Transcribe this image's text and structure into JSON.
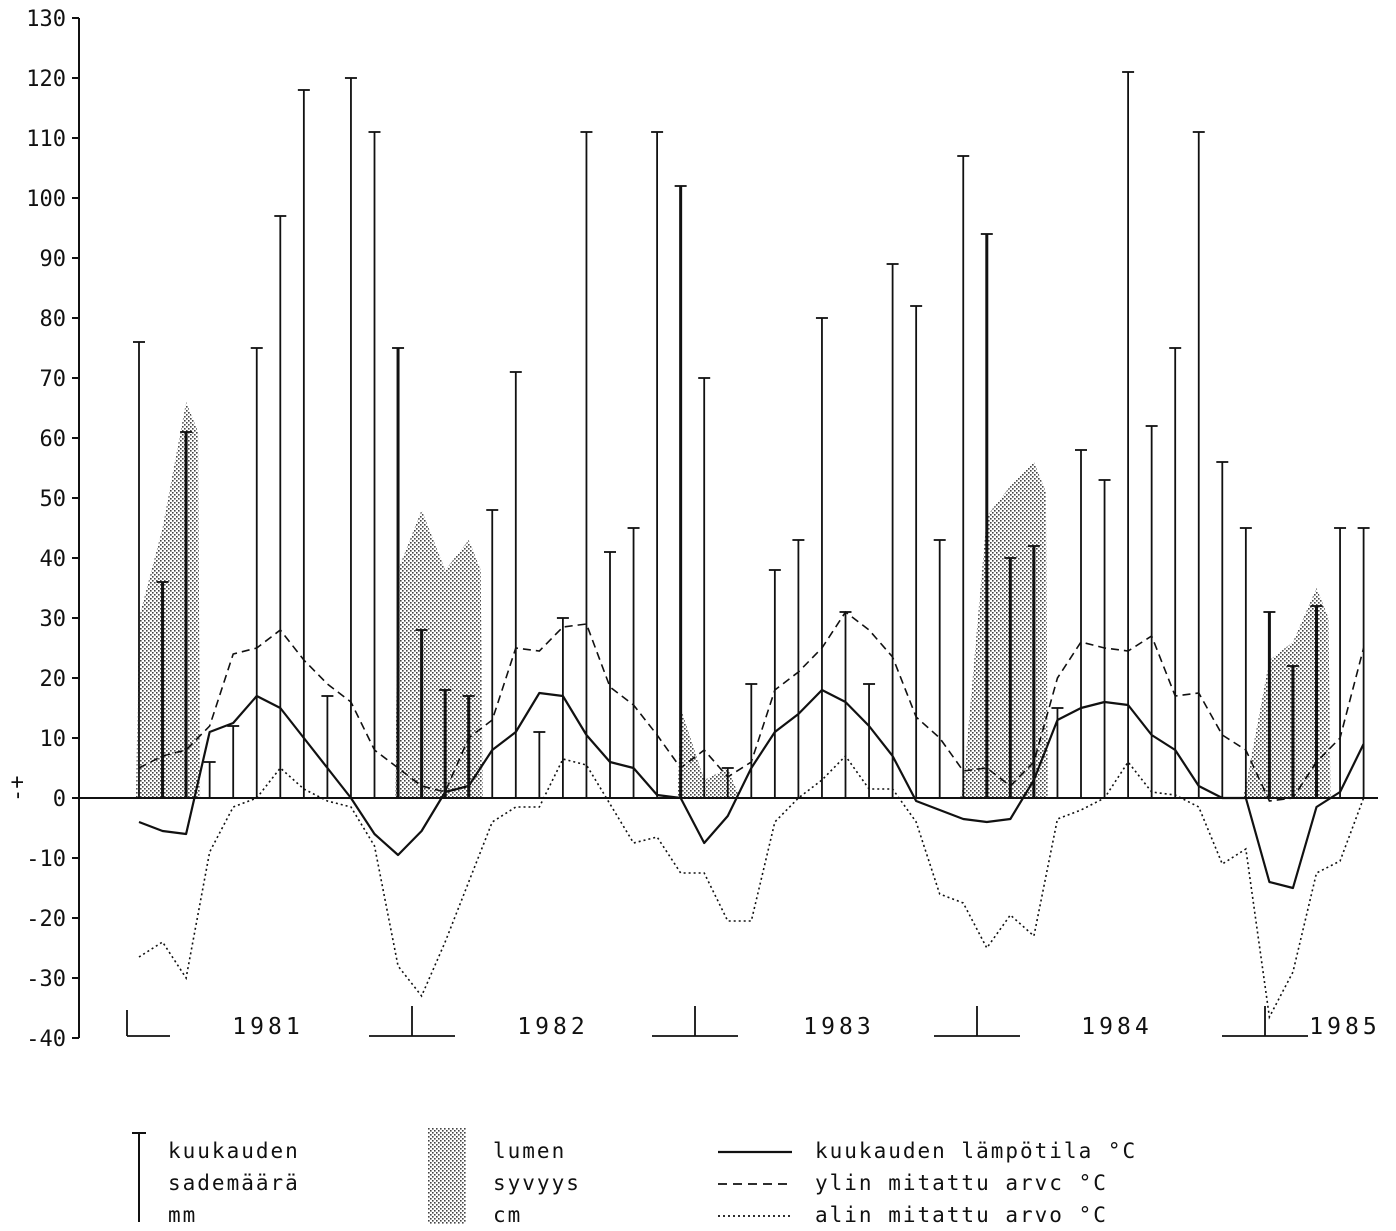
{
  "chart_data": {
    "type": "bar",
    "title": "",
    "xlabel": "",
    "ylabel": "",
    "ylim": [
      -40,
      130
    ],
    "yticks": [
      130,
      120,
      110,
      100,
      90,
      80,
      70,
      60,
      50,
      40,
      30,
      20,
      10,
      0,
      -10,
      -20,
      -30,
      -40
    ],
    "sign_label": "-+",
    "years": [
      "1981",
      "1982",
      "1983",
      "1984",
      "1985"
    ],
    "grid": false,
    "legend_position": "bottom",
    "legend": {
      "precip": [
        "kuukauden",
        "sademäärä",
        "mm"
      ],
      "snow": [
        "lumen",
        "syvyys",
        "cm"
      ],
      "mean": "kuukauden lämpötila °C",
      "max": "ylin mitattu arvc °C",
      "min": "alin mitattu arvo °C"
    },
    "months_start": "1980-12",
    "series": [
      {
        "name": "kuukauden sademäärä mm",
        "type": "bar",
        "values": [
          76,
          36,
          61,
          6,
          12,
          75,
          97,
          118,
          17,
          120,
          111,
          75,
          28,
          18,
          17,
          48,
          71,
          11,
          30,
          111,
          41,
          45,
          111,
          102,
          70,
          5,
          19,
          38,
          43,
          80,
          31,
          19,
          89,
          82,
          43,
          107,
          94,
          40,
          42,
          15,
          58,
          53,
          121,
          62,
          75,
          111,
          56,
          45,
          31,
          22,
          32,
          45,
          45
        ]
      },
      {
        "name": "lumen syvyys cm",
        "type": "area",
        "values": [
          30,
          45,
          66,
          0,
          0,
          0,
          0,
          0,
          0,
          0,
          0,
          38,
          48,
          38,
          43,
          0,
          0,
          0,
          0,
          0,
          0,
          0,
          0,
          15,
          3,
          5,
          0,
          0,
          0,
          0,
          0,
          0,
          0,
          0,
          0,
          2,
          47,
          52,
          56,
          0,
          0,
          0,
          0,
          0,
          0,
          0,
          0,
          2,
          23,
          26,
          35,
          0,
          0
        ]
      },
      {
        "name": "kuukauden lämpötila °C",
        "type": "line",
        "values": [
          -4,
          -5.5,
          -6,
          11,
          12.5,
          17,
          15,
          10,
          5,
          0,
          -6,
          -9.5,
          -5.5,
          1,
          2,
          8,
          11,
          17.5,
          17,
          10.5,
          6,
          5,
          0.5,
          0,
          -7.5,
          -3,
          5,
          11,
          14,
          18,
          16,
          12,
          7,
          -0.5,
          -2,
          -3.5,
          -4,
          -3.5,
          3,
          13,
          15,
          16,
          15.5,
          10.5,
          8,
          2,
          0,
          0,
          -14,
          -15,
          -1.5,
          1,
          9
        ]
      },
      {
        "name": "ylin mitattu arvc °C",
        "type": "line",
        "values": [
          5,
          7,
          8,
          12,
          24,
          25,
          28,
          23,
          19,
          16,
          8,
          5,
          2,
          1,
          10,
          13,
          25,
          24.5,
          28.5,
          29,
          18.5,
          15.5,
          10.5,
          5,
          8,
          3.5,
          6,
          18,
          21,
          25,
          31,
          28,
          23.5,
          13.5,
          10,
          4.5,
          5,
          2,
          6,
          20,
          26,
          25,
          24.5,
          27,
          17,
          17.5,
          10.5,
          8,
          -0.5,
          0,
          6,
          10,
          25
        ]
      },
      {
        "name": "alin mitattu arvo °C",
        "type": "line",
        "values": [
          -26.5,
          -24,
          -30,
          -9,
          -1.5,
          0,
          5,
          1.5,
          -0.5,
          -1.5,
          -8,
          -28,
          -33,
          -24,
          -14,
          -4,
          -1.5,
          -1.5,
          6.5,
          5.5,
          -1,
          -7.5,
          -6.5,
          -12.5,
          -12.5,
          -20.5,
          -20.5,
          -4,
          0,
          3,
          7,
          1.5,
          1.5,
          -4,
          -16,
          -17.5,
          -25,
          -19.5,
          -23,
          -3.5,
          -2,
          0,
          6,
          1,
          0.5,
          -1.5,
          -11,
          -8.5,
          -36.5,
          -29,
          -12.5,
          -10.5,
          0
        ]
      }
    ]
  }
}
